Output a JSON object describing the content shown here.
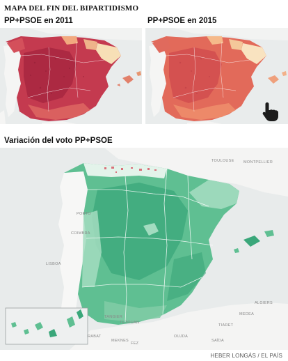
{
  "title": "MAPA DEL FIN DEL BIPARTIDISMO",
  "map_2011": {
    "heading": "PP+PSOE en 2011",
    "colors": {
      "dark": "#a8273f",
      "mid": "#d4505b",
      "light": "#f2a97f",
      "pale": "#f7dfb6"
    }
  },
  "map_2015": {
    "heading": "PP+PSOE en 2015",
    "colors": {
      "dark": "#cf4a4e",
      "mid": "#ea7a62",
      "light": "#f5b98a",
      "pale": "#f9e3c0"
    },
    "icon": "pointer-hand-icon"
  },
  "map_variation": {
    "heading": "Variación del voto PP+PSOE",
    "colors": {
      "dark": "#3aa77a",
      "mid": "#5fbf92",
      "light": "#a3dcc0",
      "pale": "#e3f3ea",
      "red": "#d9707a"
    },
    "labels": {
      "toulouse": "TOULOUSE",
      "montpellier": "MONTPELLIER",
      "porto": "PORTO",
      "coimbra": "COIMBRA",
      "lisboa": "LISBOA",
      "algiers": "ALGIERS",
      "medea": "MEDEA",
      "tiaret": "TIARET",
      "saida": "SAÏDA",
      "oujda": "OUJDA",
      "fez": "FEZ",
      "tetouan": "TETOUAN",
      "rabat": "RABAT",
      "meknes": "MEKNES",
      "tangier": "TANGIER"
    }
  },
  "credit": "HEBER LONGÁS / EL PAÍS"
}
